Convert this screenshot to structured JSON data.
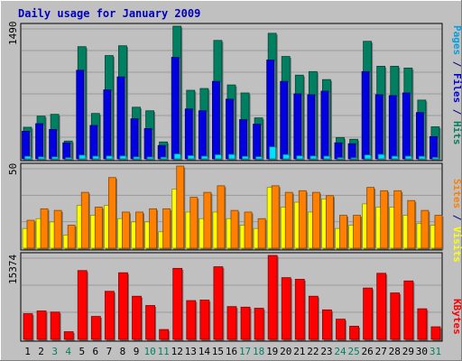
{
  "chart_data": [
    {
      "type": "bar",
      "title": "Daily usage for January 2009",
      "categories": [
        "1",
        "2",
        "3",
        "4",
        "5",
        "6",
        "7",
        "8",
        "9",
        "10",
        "11",
        "12",
        "13",
        "14",
        "15",
        "16",
        "17",
        "18",
        "19",
        "20",
        "21",
        "22",
        "23",
        "24",
        "25",
        "26",
        "27",
        "28",
        "29",
        "30",
        "31"
      ],
      "weekend_days": [
        "3",
        "4",
        "10",
        "11",
        "17",
        "18",
        "24",
        "25",
        "31"
      ],
      "ymax_label": "1490",
      "ylim": [
        0,
        1490
      ],
      "right_axis_labels": [
        {
          "text": "Pages",
          "color": "#00a0e0"
        },
        {
          "text": " / ",
          "color": "#000080"
        },
        {
          "text": "Files",
          "color": "#0000e0"
        },
        {
          "text": " / ",
          "color": "#000080"
        },
        {
          "text": "Hits",
          "color": "#008060"
        }
      ],
      "series": [
        {
          "name": "Hits",
          "color": "#008060",
          "values": [
            355,
            480,
            500,
            200,
            1260,
            510,
            1160,
            1270,
            580,
            540,
            190,
            1490,
            770,
            790,
            1330,
            830,
            740,
            460,
            1410,
            1150,
            940,
            980,
            890,
            240,
            220,
            1320,
            1040,
            1040,
            1020,
            660,
            360
          ]
        },
        {
          "name": "Files",
          "color": "#0000e0",
          "values": [
            310,
            395,
            330,
            180,
            995,
            375,
            775,
            920,
            450,
            340,
            150,
            1140,
            560,
            540,
            870,
            670,
            440,
            390,
            1110,
            870,
            730,
            720,
            760,
            180,
            170,
            980,
            720,
            710,
            740,
            520,
            250
          ]
        },
        {
          "name": "Pages",
          "color": "#00e0ff",
          "values": [
            28,
            22,
            22,
            14,
            42,
            30,
            32,
            33,
            22,
            20,
            18,
            55,
            36,
            30,
            46,
            50,
            28,
            24,
            135,
            48,
            34,
            32,
            30,
            14,
            12,
            44,
            50,
            30,
            30,
            28,
            16
          ]
        }
      ]
    },
    {
      "type": "bar",
      "ymax_label": "50",
      "ylim": [
        0,
        50
      ],
      "right_axis_labels": [
        {
          "text": "Sites",
          "color": "#ff8000"
        },
        {
          "text": " / ",
          "color": "#000080"
        },
        {
          "text": "Visits",
          "color": "#ffff00"
        }
      ],
      "series": [
        {
          "name": "Visits",
          "color": "#ffff00",
          "values": [
            12,
            18,
            16,
            8,
            26,
            20,
            26,
            18,
            16,
            16,
            10,
            36,
            22,
            18,
            22,
            18,
            14,
            12,
            37,
            25,
            28,
            22,
            30,
            12,
            14,
            27,
            25,
            25,
            20,
            15,
            14
          ]
        },
        {
          "name": "Sites",
          "color": "#ff8000",
          "values": [
            17,
            24,
            23,
            14,
            34,
            25,
            43,
            22,
            22,
            24,
            24,
            50,
            31,
            34,
            38,
            23,
            22,
            18,
            38,
            34,
            35,
            34,
            32,
            20,
            20,
            37,
            35,
            35,
            29,
            23,
            20
          ]
        }
      ]
    },
    {
      "type": "bar",
      "ymax_label": "15374",
      "ylim": [
        0,
        15374
      ],
      "right_axis_labels": [
        {
          "text": "KBytes",
          "color": "#ff0000"
        }
      ],
      "series": [
        {
          "name": "KBytes",
          "color": "#ff0000",
          "values": [
            4700,
            5200,
            5000,
            1400,
            12600,
            4200,
            8800,
            12200,
            7900,
            6200,
            1800,
            13000,
            7100,
            7200,
            13300,
            6000,
            5900,
            5700,
            15374,
            11300,
            11000,
            7900,
            5400,
            3700,
            2400,
            9400,
            12100,
            8500,
            10700,
            5600,
            2300
          ]
        }
      ]
    }
  ]
}
